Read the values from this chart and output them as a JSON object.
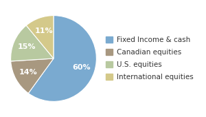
{
  "labels": [
    "Fixed Income & cash",
    "Canadian equities",
    "U.S. equities",
    "International equities"
  ],
  "values": [
    60,
    14,
    15,
    11
  ],
  "colors": [
    "#7aaad0",
    "#a89880",
    "#b8c9a0",
    "#d4c98a"
  ],
  "startangle": 90,
  "background_color": "#ffffff",
  "text_color": "#333333",
  "fontsize_legend": 7.5,
  "fontsize_autopct": 8.0
}
